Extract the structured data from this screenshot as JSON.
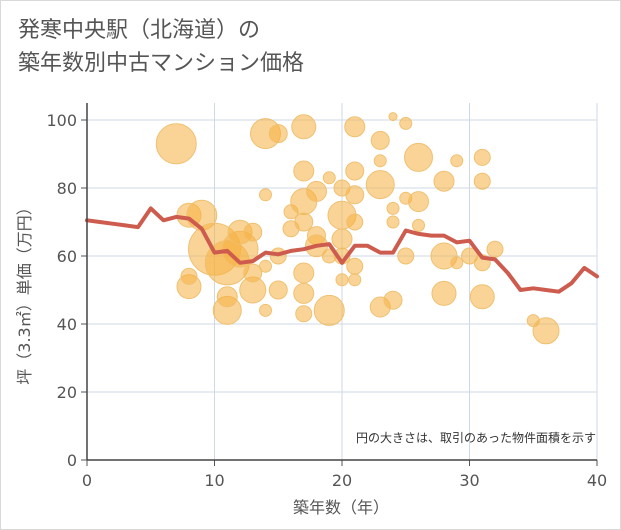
{
  "chart_data": {
    "type": "scatter",
    "title_line1": "発寒中央駅（北海道）の",
    "title_line2": "築年数別中古マンション価格",
    "xlabel": "築年数（年）",
    "ylabel": "坪（3.3㎡）単価（万円）",
    "note": "円の大きさは、取引のあった物件面積を示す",
    "xlim": [
      0,
      40
    ],
    "ylim": [
      0,
      105
    ],
    "x_ticks": [
      0,
      10,
      20,
      30,
      40
    ],
    "y_ticks": [
      0,
      20,
      40,
      60,
      80,
      100
    ],
    "grid": true,
    "bubble_color": "#f5b041",
    "line_color": "#cd5c4e",
    "bubbles": [
      {
        "x": 7,
        "y": 93,
        "r": 20
      },
      {
        "x": 8,
        "y": 72,
        "r": 12
      },
      {
        "x": 9,
        "y": 72,
        "r": 15
      },
      {
        "x": 10,
        "y": 62,
        "r": 26
      },
      {
        "x": 8,
        "y": 51,
        "r": 12
      },
      {
        "x": 8,
        "y": 54,
        "r": 8
      },
      {
        "x": 11,
        "y": 44,
        "r": 14
      },
      {
        "x": 11,
        "y": 48,
        "r": 10
      },
      {
        "x": 11,
        "y": 58,
        "r": 22
      },
      {
        "x": 12,
        "y": 62,
        "r": 18
      },
      {
        "x": 12,
        "y": 67,
        "r": 12
      },
      {
        "x": 13,
        "y": 50,
        "r": 13
      },
      {
        "x": 13,
        "y": 55,
        "r": 9
      },
      {
        "x": 13,
        "y": 67,
        "r": 9
      },
      {
        "x": 14,
        "y": 96,
        "r": 15
      },
      {
        "x": 15,
        "y": 96,
        "r": 9
      },
      {
        "x": 14,
        "y": 78,
        "r": 6
      },
      {
        "x": 14,
        "y": 57,
        "r": 6
      },
      {
        "x": 14,
        "y": 44,
        "r": 6
      },
      {
        "x": 15,
        "y": 50,
        "r": 9
      },
      {
        "x": 15,
        "y": 60,
        "r": 8
      },
      {
        "x": 16,
        "y": 68,
        "r": 8
      },
      {
        "x": 16,
        "y": 73,
        "r": 7
      },
      {
        "x": 17,
        "y": 98,
        "r": 12
      },
      {
        "x": 17,
        "y": 85,
        "r": 10
      },
      {
        "x": 17,
        "y": 76,
        "r": 13
      },
      {
        "x": 17,
        "y": 70,
        "r": 9
      },
      {
        "x": 17,
        "y": 55,
        "r": 10
      },
      {
        "x": 17,
        "y": 49,
        "r": 10
      },
      {
        "x": 17,
        "y": 43,
        "r": 8
      },
      {
        "x": 18,
        "y": 79,
        "r": 10
      },
      {
        "x": 18,
        "y": 66,
        "r": 9
      },
      {
        "x": 18,
        "y": 63,
        "r": 11
      },
      {
        "x": 19,
        "y": 44,
        "r": 15
      },
      {
        "x": 19,
        "y": 60,
        "r": 7
      },
      {
        "x": 19,
        "y": 83,
        "r": 6
      },
      {
        "x": 20,
        "y": 80,
        "r": 8
      },
      {
        "x": 20,
        "y": 72,
        "r": 14
      },
      {
        "x": 20,
        "y": 65,
        "r": 10
      },
      {
        "x": 20,
        "y": 60,
        "r": 8
      },
      {
        "x": 20,
        "y": 53,
        "r": 6
      },
      {
        "x": 21,
        "y": 98,
        "r": 10
      },
      {
        "x": 21,
        "y": 85,
        "r": 9
      },
      {
        "x": 21,
        "y": 78,
        "r": 9
      },
      {
        "x": 21,
        "y": 70,
        "r": 8
      },
      {
        "x": 21,
        "y": 57,
        "r": 8
      },
      {
        "x": 21,
        "y": 53,
        "r": 6
      },
      {
        "x": 23,
        "y": 94,
        "r": 9
      },
      {
        "x": 23,
        "y": 88,
        "r": 6
      },
      {
        "x": 23,
        "y": 81,
        "r": 14
      },
      {
        "x": 23,
        "y": 45,
        "r": 10
      },
      {
        "x": 24,
        "y": 47,
        "r": 9
      },
      {
        "x": 24,
        "y": 74,
        "r": 6
      },
      {
        "x": 24,
        "y": 70,
        "r": 6
      },
      {
        "x": 24,
        "y": 101,
        "r": 4
      },
      {
        "x": 25,
        "y": 99,
        "r": 6
      },
      {
        "x": 25,
        "y": 60,
        "r": 8
      },
      {
        "x": 25,
        "y": 77,
        "r": 6
      },
      {
        "x": 26,
        "y": 89,
        "r": 14
      },
      {
        "x": 26,
        "y": 76,
        "r": 10
      },
      {
        "x": 26,
        "y": 69,
        "r": 6
      },
      {
        "x": 28,
        "y": 82,
        "r": 10
      },
      {
        "x": 28,
        "y": 60,
        "r": 13
      },
      {
        "x": 28,
        "y": 49,
        "r": 12
      },
      {
        "x": 29,
        "y": 88,
        "r": 6
      },
      {
        "x": 29,
        "y": 58,
        "r": 6
      },
      {
        "x": 30,
        "y": 60,
        "r": 8
      },
      {
        "x": 31,
        "y": 89,
        "r": 8
      },
      {
        "x": 31,
        "y": 82,
        "r": 8
      },
      {
        "x": 31,
        "y": 48,
        "r": 12
      },
      {
        "x": 31,
        "y": 58,
        "r": 8
      },
      {
        "x": 32,
        "y": 62,
        "r": 8
      },
      {
        "x": 35,
        "y": 41,
        "r": 6
      },
      {
        "x": 36,
        "y": 38,
        "r": 13
      }
    ],
    "series": [
      {
        "x": [
          0,
          1,
          2,
          3,
          4,
          5,
          6,
          7,
          8,
          9,
          10,
          11,
          12,
          13,
          14,
          15,
          16,
          17,
          18,
          19,
          20,
          21,
          22,
          23,
          24,
          25,
          26,
          27,
          28,
          29,
          30,
          31,
          32,
          33,
          34,
          35,
          36,
          37,
          38,
          39,
          40
        ],
        "y": [
          70.5,
          70,
          69.5,
          69,
          68.5,
          74,
          70.5,
          71.5,
          71,
          68,
          61,
          61.5,
          58,
          58.5,
          61,
          60.5,
          61.5,
          62,
          63,
          63.5,
          58,
          63,
          63,
          61,
          61,
          67.5,
          66.5,
          66,
          66,
          64,
          64.5,
          59.5,
          59,
          55,
          50,
          50.5,
          50,
          49.5,
          52,
          56.5,
          54
        ]
      }
    ]
  }
}
